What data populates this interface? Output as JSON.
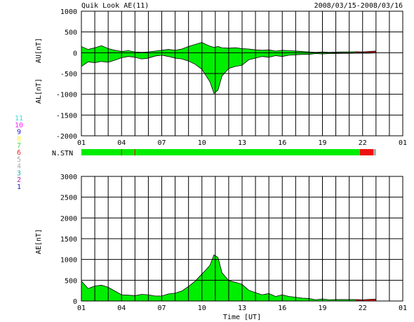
{
  "header": {
    "title": "Quik Look AE(11)",
    "date_range": "2008/03/15-2008/03/16"
  },
  "station_legend": [
    {
      "label": "11",
      "color": "#33dddd"
    },
    {
      "label": "10",
      "color": "#ff22ff"
    },
    {
      "label": "9",
      "color": "#2222cc"
    },
    {
      "label": "8",
      "color": "#ffee33"
    },
    {
      "label": "7",
      "color": "#44dd44"
    },
    {
      "label": "6",
      "color": "#ee2222"
    },
    {
      "label": "5",
      "color": "#aaaaaa"
    },
    {
      "label": "4",
      "color": "#aaaaaa"
    },
    {
      "label": "3",
      "color": "#22aaaa"
    },
    {
      "label": "2",
      "color": "#aa22aa"
    },
    {
      "label": "1",
      "color": "#2222aa"
    }
  ],
  "colors": {
    "fill": "#00ee00",
    "recent": "#ee1111",
    "grid": "#000000"
  },
  "chart_data": [
    {
      "type": "area",
      "name": "au-al-panel",
      "ylabel_upper": "AU[nT]",
      "ylabel_lower": "AL[nT]",
      "ylim": [
        -2000,
        1000
      ],
      "yticks": [
        "1000",
        "500",
        "0",
        "-500",
        "-1000",
        "-1500",
        "-2000"
      ],
      "xticks": [
        "01",
        "04",
        "07",
        "10",
        "13",
        "16",
        "19",
        "22",
        "01"
      ],
      "xlim_hours": [
        1,
        25
      ],
      "x_hours": [
        1.0,
        1.5,
        2.0,
        2.5,
        3.0,
        3.5,
        4.0,
        4.5,
        5.0,
        5.5,
        6.0,
        6.5,
        7.0,
        7.5,
        8.0,
        8.5,
        9.0,
        9.5,
        10.0,
        10.3,
        10.6,
        10.9,
        11.2,
        11.5,
        12.0,
        12.5,
        13.0,
        13.5,
        14.0,
        14.5,
        15.0,
        15.5,
        16.0,
        16.5,
        17.0,
        17.5,
        18.0,
        18.5,
        19.0,
        19.5,
        20.0,
        20.5,
        21.0,
        21.5,
        22.0,
        22.5,
        23.0
      ],
      "au": [
        150,
        80,
        120,
        170,
        100,
        60,
        30,
        50,
        20,
        10,
        20,
        40,
        60,
        80,
        60,
        90,
        150,
        200,
        250,
        200,
        160,
        130,
        150,
        120,
        110,
        120,
        100,
        90,
        70,
        60,
        70,
        40,
        60,
        50,
        40,
        30,
        20,
        10,
        20,
        10,
        15,
        20,
        20,
        25,
        20,
        30,
        40
      ],
      "al": [
        -330,
        -220,
        -240,
        -210,
        -230,
        -180,
        -120,
        -90,
        -110,
        -150,
        -130,
        -80,
        -60,
        -90,
        -130,
        -150,
        -200,
        -280,
        -400,
        -550,
        -700,
        -980,
        -900,
        -560,
        -380,
        -330,
        -300,
        -170,
        -130,
        -90,
        -110,
        -70,
        -90,
        -60,
        -50,
        -40,
        -40,
        -20,
        -30,
        -20,
        -20,
        -15,
        -15,
        -10,
        -10,
        -10,
        -5
      ],
      "recent_from_hour": 21.8
    },
    {
      "type": "area",
      "name": "ae-panel",
      "ylabel": "AE[nT]",
      "xlabel": "Time [UT]",
      "ylim": [
        0,
        3000
      ],
      "yticks": [
        "3000",
        "2500",
        "2000",
        "1500",
        "1000",
        "500",
        "0"
      ],
      "xticks": [
        "01",
        "04",
        "07",
        "10",
        "13",
        "16",
        "19",
        "22",
        "01"
      ],
      "xlim_hours": [
        1,
        25
      ],
      "x_hours": [
        1.0,
        1.5,
        2.0,
        2.5,
        3.0,
        3.5,
        4.0,
        4.5,
        5.0,
        5.5,
        6.0,
        6.5,
        7.0,
        7.5,
        8.0,
        8.5,
        9.0,
        9.5,
        10.0,
        10.3,
        10.6,
        10.9,
        11.2,
        11.5,
        12.0,
        12.5,
        13.0,
        13.5,
        14.0,
        14.5,
        15.0,
        15.5,
        16.0,
        16.5,
        17.0,
        17.5,
        18.0,
        18.5,
        19.0,
        19.5,
        20.0,
        20.5,
        21.0,
        21.5,
        22.0,
        22.5,
        23.0
      ],
      "values": [
        480,
        300,
        360,
        380,
        330,
        240,
        150,
        140,
        130,
        160,
        150,
        120,
        120,
        170,
        190,
        240,
        350,
        480,
        650,
        750,
        860,
        1110,
        1050,
        680,
        490,
        450,
        400,
        260,
        200,
        150,
        180,
        110,
        150,
        110,
        90,
        70,
        60,
        30,
        50,
        30,
        35,
        35,
        35,
        35,
        30,
        40,
        45
      ],
      "recent_from_hour": 21.8
    }
  ],
  "station_bar": {
    "label": "N.STN",
    "segments": [
      {
        "from_hour": 1.0,
        "to_hour": 21.8,
        "color": "#00ee00",
        "stations": 11
      },
      {
        "from_hour": 21.8,
        "to_hour": 22.8,
        "color": "#ee1111",
        "stations": 6
      },
      {
        "from_hour": 22.8,
        "to_hour": 23.0,
        "color": "#aaaaaa",
        "stations": 5
      }
    ],
    "markers_hours": [
      4.0,
      5.0
    ]
  }
}
